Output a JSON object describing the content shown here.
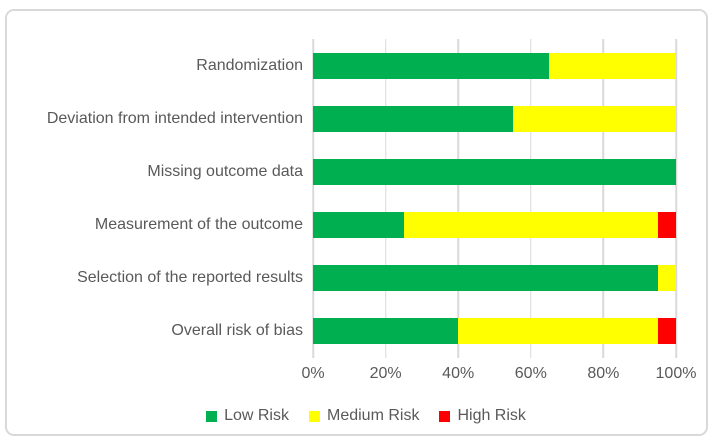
{
  "chart_data": {
    "type": "bar",
    "orientation": "horizontal",
    "stacked": true,
    "title": "",
    "xlabel": "",
    "ylabel": "",
    "categories": [
      "Randomization",
      "Deviation from intended intervention",
      "Missing outcome data",
      "Measurement of the outcome",
      "Selection of the reported results",
      "Overall risk of bias"
    ],
    "series": [
      {
        "name": "Low Risk",
        "color": "#00B050",
        "values": [
          65,
          55,
          100,
          25,
          95,
          40
        ]
      },
      {
        "name": "Medium Risk",
        "color": "#FFFF00",
        "values": [
          35,
          45,
          0,
          70,
          5,
          55
        ]
      },
      {
        "name": "High Risk",
        "color": "#FF0000",
        "values": [
          0,
          0,
          0,
          5,
          0,
          5
        ]
      }
    ],
    "x_ticks": [
      "0%",
      "20%",
      "40%",
      "60%",
      "80%",
      "100%"
    ],
    "xlim": [
      0,
      100
    ],
    "grid": true,
    "legend_position": "bottom"
  },
  "style": {
    "text_color": "#595959",
    "gridline_color": "#D9D9D9",
    "frame_border_color": "#D9D9D9",
    "background": "#FFFFFF"
  }
}
